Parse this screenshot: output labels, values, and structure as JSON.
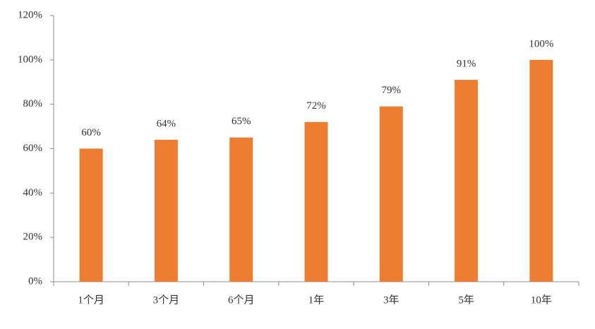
{
  "chart_data": {
    "type": "bar",
    "categories": [
      "1个月",
      "3个月",
      "6个月",
      "1年",
      "3年",
      "5年",
      "10年"
    ],
    "values": [
      60,
      64,
      65,
      72,
      79,
      91,
      100
    ],
    "value_labels": [
      "60%",
      "64%",
      "65%",
      "72%",
      "79%",
      "91%",
      "100%"
    ],
    "color": "#ed7d31",
    "ylim": [
      0,
      120
    ],
    "yticks": [
      {
        "value": 0,
        "label": "0%"
      },
      {
        "value": 20,
        "label": "20%"
      },
      {
        "value": 40,
        "label": "40%"
      },
      {
        "value": 60,
        "label": "60%"
      },
      {
        "value": 80,
        "label": "80%"
      },
      {
        "value": 100,
        "label": "100%"
      },
      {
        "value": 120,
        "label": "120%"
      }
    ],
    "grid": false
  }
}
